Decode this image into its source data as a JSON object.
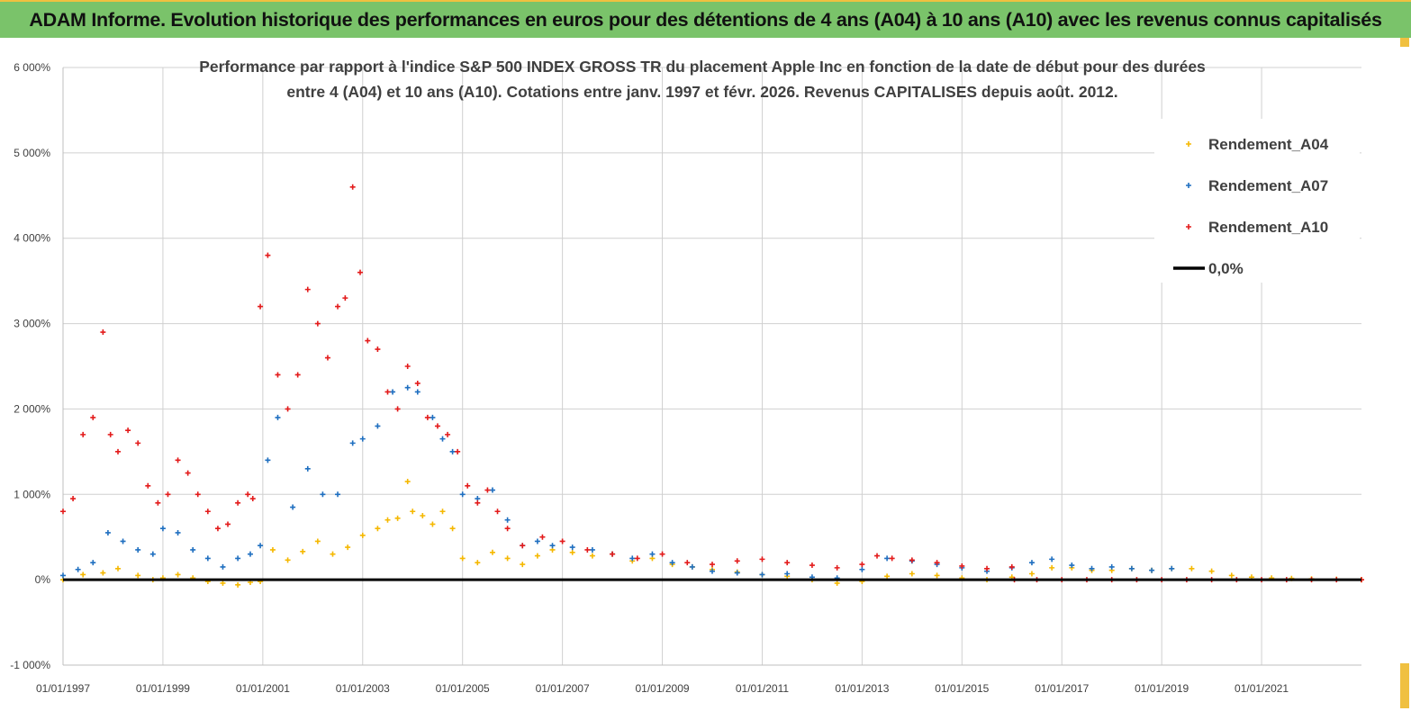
{
  "banner": {
    "title": "ADAM Informe. Evolution historique des performances en euros pour des détentions de 4 ans (A04) à 10 ans (A10) avec les revenus connus capitalisés"
  },
  "chart_data": {
    "type": "scatter",
    "title_line1": "Performance par rapport à l'indice S&P 500 INDEX GROSS TR  du placement Apple Inc en fonction de la date de début pour des durées",
    "title_line2": "entre 4 (A04) et 10 ans (A10).  Cotations entre janv. 1997 et févr. 2026. Revenus CAPITALISES depuis août. 2012.",
    "xlabel": "",
    "ylabel": "",
    "x_range": [
      1997.0,
      2023.0
    ],
    "ylim": [
      -1000,
      6000
    ],
    "y_ticks": [
      -1000,
      0,
      1000,
      2000,
      3000,
      4000,
      5000,
      6000
    ],
    "y_tick_labels": [
      "-1 000%",
      "0%",
      "1 000%",
      "2 000%",
      "3 000%",
      "4 000%",
      "5 000%",
      "6 000%"
    ],
    "x_ticks": [
      1997,
      1999,
      2001,
      2003,
      2005,
      2007,
      2009,
      2011,
      2013,
      2015,
      2017,
      2019,
      2021
    ],
    "x_tick_labels": [
      "01/01/1997",
      "01/01/1999",
      "01/01/2001",
      "01/01/2003",
      "01/01/2005",
      "01/01/2007",
      "01/01/2009",
      "01/01/2011",
      "01/01/2013",
      "01/01/2015",
      "01/01/2017",
      "01/01/2019",
      "01/01/2021"
    ],
    "legend_position": "top-right",
    "series": [
      {
        "name": "Rendement_A04",
        "color": "#f5b800",
        "x": [
          1997.0,
          1997.4,
          1997.8,
          1998.1,
          1998.5,
          1998.8,
          1999.0,
          1999.3,
          1999.6,
          1999.9,
          2000.2,
          2000.5,
          2000.75,
          2000.95,
          2001.2,
          2001.5,
          2001.8,
          2002.1,
          2002.4,
          2002.7,
          2003.0,
          2003.3,
          2003.5,
          2003.7,
          2003.9,
          2004.0,
          2004.2,
          2004.4,
          2004.6,
          2004.8,
          2005.0,
          2005.3,
          2005.6,
          2005.9,
          2006.2,
          2006.5,
          2006.8,
          2007.2,
          2007.6,
          2008.0,
          2008.4,
          2008.8,
          2009.2,
          2009.6,
          2010.0,
          2010.5,
          2011.0,
          2011.5,
          2012.0,
          2012.5,
          2013.0,
          2013.5,
          2014.0,
          2014.5,
          2015.0,
          2015.5,
          2016.0,
          2016.4,
          2016.8,
          2017.2,
          2017.6,
          2018.0,
          2018.4,
          2018.8,
          2019.2,
          2019.6,
          2020.0,
          2020.4,
          2020.8,
          2021.2,
          2021.6,
          2022.0,
          2022.5,
          2023.0
        ],
        "values": [
          0,
          60,
          80,
          130,
          50,
          0,
          20,
          60,
          20,
          -20,
          -40,
          -60,
          -30,
          -20,
          350,
          230,
          330,
          450,
          300,
          380,
          520,
          600,
          700,
          720,
          1150,
          800,
          750,
          650,
          800,
          600,
          250,
          200,
          320,
          250,
          180,
          280,
          350,
          320,
          280,
          300,
          220,
          250,
          180,
          150,
          120,
          90,
          60,
          40,
          0,
          -40,
          -20,
          40,
          70,
          50,
          20,
          0,
          30,
          70,
          140,
          140,
          110,
          110,
          130,
          110,
          130,
          130,
          100,
          50,
          30,
          20,
          15,
          10,
          5,
          0
        ]
      },
      {
        "name": "Rendement_A07",
        "color": "#1f6fc0",
        "x": [
          1997.0,
          1997.3,
          1997.6,
          1997.9,
          1998.2,
          1998.5,
          1998.8,
          1999.0,
          1999.3,
          1999.6,
          1999.9,
          2000.2,
          2000.5,
          2000.75,
          2000.95,
          2001.1,
          2001.3,
          2001.6,
          2001.9,
          2002.2,
          2002.5,
          2002.8,
          2003.0,
          2003.3,
          2003.6,
          2003.9,
          2004.1,
          2004.4,
          2004.6,
          2004.8,
          2005.0,
          2005.3,
          2005.6,
          2005.9,
          2006.2,
          2006.5,
          2006.8,
          2007.2,
          2007.6,
          2008.0,
          2008.4,
          2008.8,
          2009.2,
          2009.6,
          2010.0,
          2010.5,
          2011.0,
          2011.5,
          2012.0,
          2012.5,
          2013.0,
          2013.5,
          2014.0,
          2014.5,
          2015.0,
          2015.5,
          2016.0,
          2016.4,
          2016.8,
          2017.2,
          2017.6,
          2018.0,
          2018.4,
          2018.8,
          2019.2
        ],
        "values": [
          50,
          120,
          200,
          550,
          450,
          350,
          300,
          600,
          550,
          350,
          250,
          150,
          250,
          300,
          400,
          1400,
          1900,
          850,
          1300,
          1000,
          1000,
          1600,
          1650,
          1800,
          2200,
          2250,
          2200,
          1900,
          1650,
          1500,
          1000,
          950,
          1050,
          700,
          400,
          450,
          400,
          380,
          350,
          300,
          250,
          300,
          200,
          150,
          100,
          80,
          60,
          70,
          30,
          20,
          120,
          250,
          220,
          180,
          140,
          100,
          140,
          200,
          240,
          170,
          130,
          150,
          130,
          110,
          130
        ]
      },
      {
        "name": "Rendement_A10",
        "color": "#e31b1b",
        "x": [
          1997.0,
          1997.2,
          1997.4,
          1997.6,
          1997.8,
          1997.95,
          1998.1,
          1998.3,
          1998.5,
          1998.7,
          1998.9,
          1999.1,
          1999.3,
          1999.5,
          1999.7,
          1999.9,
          2000.1,
          2000.3,
          2000.5,
          2000.7,
          2000.8,
          2000.95,
          2001.1,
          2001.3,
          2001.5,
          2001.7,
          2001.9,
          2002.1,
          2002.3,
          2002.5,
          2002.65,
          2002.8,
          2002.95,
          2003.1,
          2003.3,
          2003.5,
          2003.7,
          2003.9,
          2004.1,
          2004.3,
          2004.5,
          2004.7,
          2004.9,
          2005.1,
          2005.3,
          2005.5,
          2005.7,
          2005.9,
          2006.2,
          2006.6,
          2007.0,
          2007.5,
          2008.0,
          2008.5,
          2009.0,
          2009.5,
          2010.0,
          2010.5,
          2011.0,
          2011.5,
          2012.0,
          2012.5,
          2013.0,
          2013.3,
          2013.6,
          2014.0,
          2014.5,
          2015.0,
          2015.5,
          2016.0,
          2016.05,
          2016.5,
          2017.0,
          2017.5,
          2018.0,
          2018.5,
          2019.0,
          2019.5,
          2020.0,
          2020.5,
          2021.0,
          2021.5,
          2022.0,
          2022.5,
          2023.0
        ],
        "values": [
          800,
          950,
          1700,
          1900,
          2900,
          1700,
          1500,
          1750,
          1600,
          1100,
          900,
          1000,
          1400,
          1250,
          1000,
          800,
          600,
          650,
          900,
          1000,
          950,
          3200,
          3800,
          2400,
          2000,
          2400,
          3400,
          3000,
          2600,
          3200,
          3300,
          4600,
          3600,
          2800,
          2700,
          2200,
          2000,
          2500,
          2300,
          1900,
          1800,
          1700,
          1500,
          1100,
          900,
          1050,
          800,
          600,
          400,
          500,
          450,
          350,
          300,
          250,
          300,
          200,
          180,
          220,
          240,
          200,
          170,
          140,
          180,
          280,
          250,
          230,
          200,
          160,
          130,
          150,
          0,
          0,
          0,
          0,
          0,
          0,
          0,
          0,
          0,
          0,
          0,
          0,
          0,
          0,
          0
        ]
      },
      {
        "name": "0,0%",
        "color": "#000000",
        "x": [
          1997.0,
          2023.0
        ],
        "values": [
          0,
          0
        ]
      }
    ]
  }
}
